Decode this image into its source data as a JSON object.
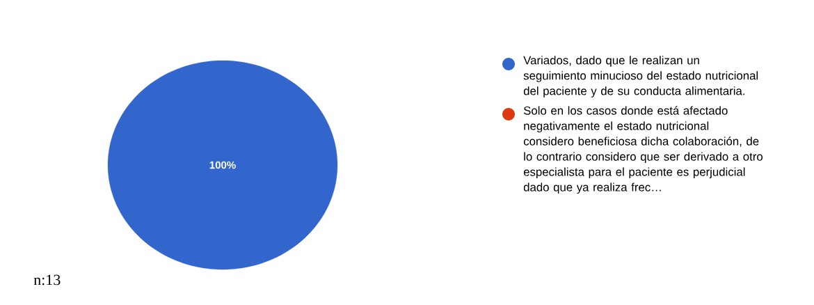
{
  "chart_data": {
    "type": "pie",
    "categories": [
      "Variados, dado que le realizan un seguimiento minucioso del estado nutricional del paciente y de su conducta alimentaria.",
      "Solo en los casos donde está afectado negativamente el estado nutricional considero beneficiosa dicha colaboración, de lo contrario considero que ser derivado a otro especialista para el paciente es perjudicial dado que ya realiza frec…"
    ],
    "values": [
      100,
      0
    ],
    "colors": [
      "#3366cc",
      "#dc3912"
    ],
    "value_labels": [
      "100%",
      null
    ],
    "legend": "right",
    "annotations": [
      "n:13"
    ]
  }
}
